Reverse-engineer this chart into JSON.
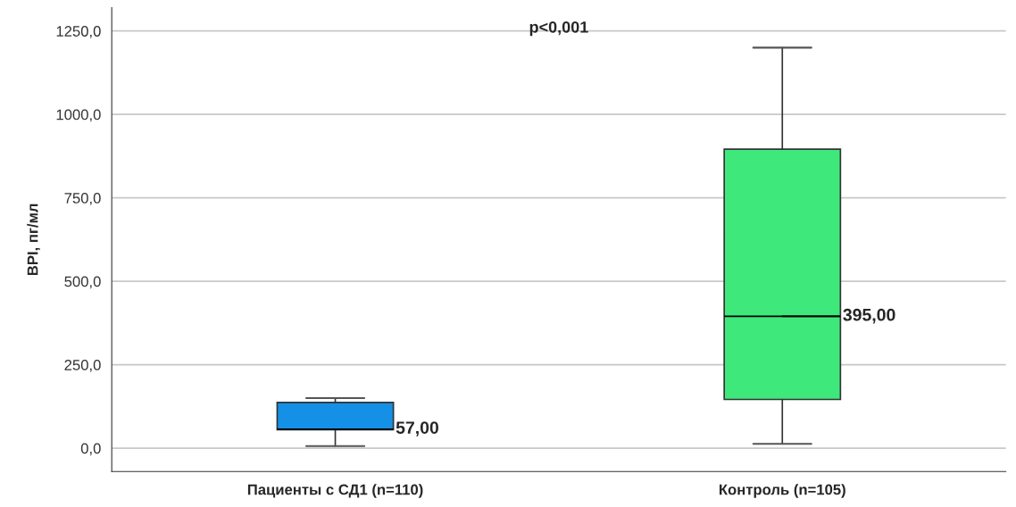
{
  "chart_data": {
    "type": "box",
    "ylabel": "BPI, пг/мл",
    "categories": [
      "Пациенты с СД1 (n=110)",
      "Контроль (n=105)"
    ],
    "colors": [
      "#1490e6",
      "#3ee87a"
    ],
    "boxes": [
      {
        "low": 6,
        "q1": 55,
        "median": 57,
        "q3": 137,
        "high": 150
      },
      {
        "low": 13,
        "q1": 146,
        "median": 395,
        "q3": 896,
        "high": 1200
      }
    ],
    "ylim": [
      -70,
      1320
    ],
    "yticks": [
      {
        "value": 0,
        "label": "0,0"
      },
      {
        "value": 250,
        "label": "250,0"
      },
      {
        "value": 500,
        "label": "500,0"
      },
      {
        "value": 750,
        "label": "750,0"
      },
      {
        "value": 1000,
        "label": "1000,0"
      },
      {
        "value": 1250,
        "label": "1250,0"
      }
    ],
    "grid": "y",
    "annotations": [
      {
        "text": "57,00",
        "x": "Пациенты с СД1 (n=110)",
        "y": 57
      },
      {
        "text": "395,00",
        "x": "Контроль (n=105)",
        "y": 395
      },
      "p<0,001"
    ]
  }
}
